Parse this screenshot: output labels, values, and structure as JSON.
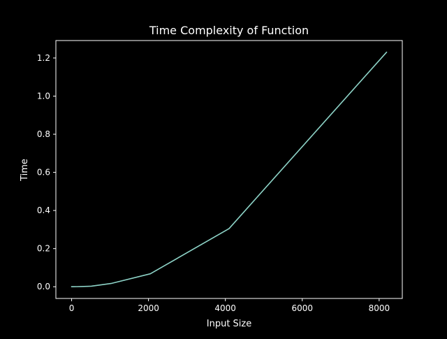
{
  "chart_data": {
    "type": "line",
    "title": "Time Complexity of Function",
    "xlabel": "Input Size",
    "ylabel": "Time",
    "x": [
      1,
      2,
      4,
      8,
      16,
      32,
      64,
      128,
      256,
      512,
      1024,
      2048,
      4096,
      8192
    ],
    "series": [
      {
        "values": [
          0.0,
          0.0,
          0.0,
          0.0,
          0.0,
          0.0,
          0.0002,
          0.0004,
          0.001,
          0.003,
          0.017,
          0.068,
          0.305,
          1.23
        ],
        "color": "#8dd3c7"
      }
    ],
    "xlim": [
      -409.55,
      8602.55
    ],
    "ylim": [
      -0.0615,
      1.2915
    ],
    "xticks": [
      0,
      2000,
      4000,
      6000,
      8000
    ],
    "xtick_labels": [
      "0",
      "2000",
      "4000",
      "6000",
      "8000"
    ],
    "yticks": [
      0.0,
      0.2,
      0.4,
      0.6,
      0.8,
      1.0,
      1.2
    ],
    "ytick_labels": [
      "0.0",
      "0.2",
      "0.4",
      "0.6",
      "0.8",
      "1.0",
      "1.2"
    ],
    "grid": false,
    "background": "#000000",
    "axes_color": "#ffffff"
  }
}
